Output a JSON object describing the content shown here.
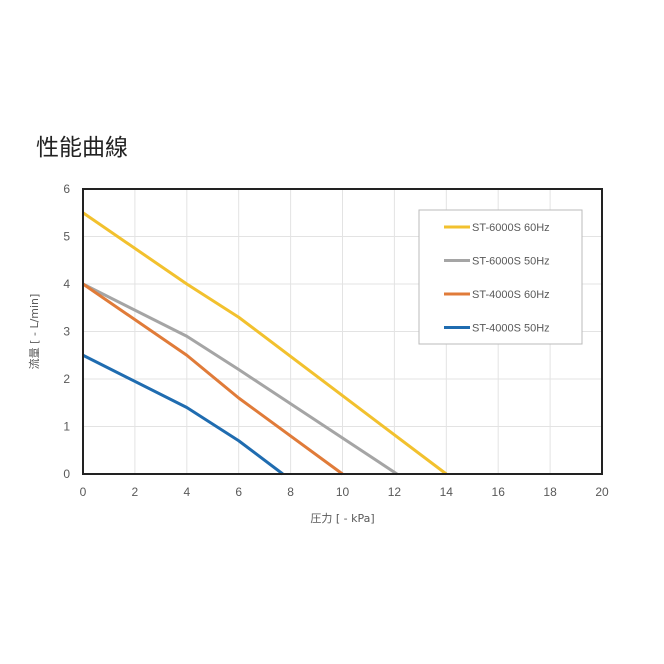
{
  "chart_data": {
    "type": "line",
    "title": "性能曲線",
    "xlabel": "圧力 [ - kPa]",
    "ylabel": "流量 [ - L/min]",
    "xlim": [
      0,
      20
    ],
    "ylim": [
      0,
      6
    ],
    "xticks": [
      "0",
      "2",
      "4",
      "6",
      "8",
      "10",
      "12",
      "14",
      "16",
      "18",
      "20"
    ],
    "yticks": [
      "0",
      "1",
      "2",
      "3",
      "4",
      "5",
      "6"
    ],
    "grid": true,
    "legend_position": "top-right",
    "series": [
      {
        "name": "ST-6000S 60Hz",
        "color": "#F2C12E",
        "x": [
          0,
          4,
          6,
          14
        ],
        "y": [
          5.5,
          4.0,
          3.3,
          0
        ]
      },
      {
        "name": "ST-6000S 50Hz",
        "color": "#A5A5A5",
        "x": [
          0,
          4,
          6,
          12.1
        ],
        "y": [
          4.0,
          2.9,
          2.2,
          0
        ]
      },
      {
        "name": "ST-4000S 60Hz",
        "color": "#E07B39",
        "x": [
          0,
          4,
          6,
          10
        ],
        "y": [
          4.0,
          2.5,
          1.6,
          0
        ]
      },
      {
        "name": "ST-4000S 50Hz",
        "color": "#1F6CB0",
        "x": [
          0,
          4,
          6,
          7.7
        ],
        "y": [
          2.5,
          1.4,
          0.7,
          0
        ]
      }
    ]
  }
}
